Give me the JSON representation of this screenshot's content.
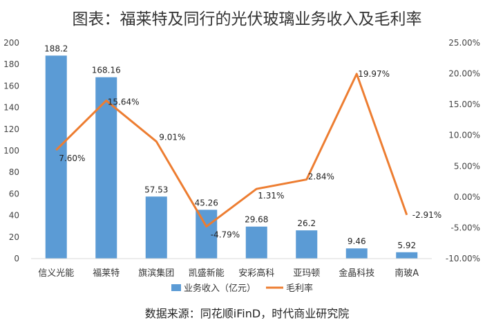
{
  "chart_data": {
    "type": "bar",
    "title": "图表：福莱特及同行的光伏玻璃业务收入及毛利率",
    "source": "数据来源：同花顺iFinD，时代商业研究院",
    "categories": [
      "信义光能",
      "福莱特",
      "旗滨集团",
      "凯盛新能",
      "安彩高科",
      "亚玛顿",
      "金晶科技",
      "南玻A"
    ],
    "series": [
      {
        "name": "业务收入（亿元）",
        "type": "bar",
        "axis": "left",
        "color": "#5B9BD5",
        "values": [
          188.2,
          168.16,
          57.53,
          45.26,
          29.68,
          26.2,
          9.46,
          5.92
        ],
        "labels": [
          "188.2",
          "168.16",
          "57.53",
          "45.26",
          "29.68",
          "26.2",
          "9.46",
          "5.92"
        ]
      },
      {
        "name": "毛利率",
        "type": "line",
        "axis": "right",
        "color": "#ED7D31",
        "values": [
          7.6,
          15.64,
          9.01,
          -4.79,
          1.31,
          2.84,
          19.97,
          -2.91
        ],
        "labels": [
          "7.60%",
          "15.64%",
          "9.01%",
          "-4.79%",
          "1.31%",
          "2.84%",
          "19.97%",
          "-2.91%"
        ]
      }
    ],
    "y_left": {
      "ylim": [
        0,
        200
      ],
      "ticks": [
        "0",
        "20",
        "40",
        "60",
        "80",
        "100",
        "120",
        "140",
        "160",
        "180",
        "200"
      ]
    },
    "y_right": {
      "ylim": [
        -10,
        25
      ],
      "unit": "%",
      "ticks": [
        "-10.00%",
        "-5.00%",
        "0.00%",
        "5.00%",
        "10.00%",
        "15.00%",
        "20.00%",
        "25.00%"
      ]
    },
    "grid": false,
    "legend_position": "bottom"
  }
}
